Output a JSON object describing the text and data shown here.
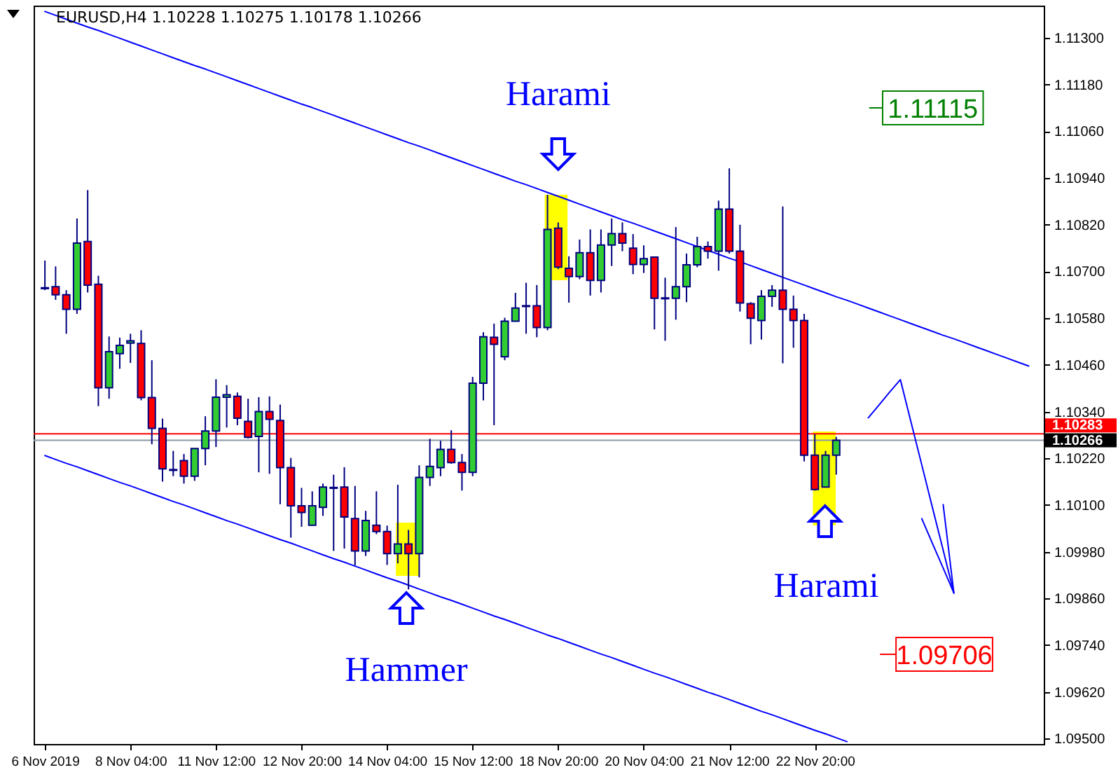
{
  "chart_data": {
    "type": "candlestick",
    "title": "EURUSD,H4  1.10228 1.10275 1.10178 1.10266",
    "categories": [
      "6 Nov 2019",
      null,
      null,
      null,
      null,
      null,
      null,
      null,
      "8 Nov 04:00",
      null,
      null,
      null,
      null,
      null,
      null,
      null,
      "11 Nov 12:00",
      null,
      null,
      null,
      null,
      null,
      null,
      null,
      "12 Nov 20:00",
      null,
      null,
      null,
      null,
      null,
      null,
      null,
      "14 Nov 04:00",
      null,
      null,
      null,
      null,
      null,
      null,
      null,
      "15 Nov 12:00",
      null,
      null,
      null,
      null,
      null,
      null,
      null,
      "18 Nov 20:00",
      null,
      null,
      null,
      null,
      null,
      null,
      null,
      "20 Nov 04:00",
      null,
      null,
      null,
      null,
      null,
      null,
      null,
      "21 Nov 12:00",
      null,
      null,
      null,
      null,
      null,
      null,
      null,
      "22 Nov 20:00",
      null,
      null,
      null,
      null,
      null,
      null,
      null,
      null,
      null,
      null,
      null,
      null,
      null,
      null,
      null,
      null,
      null,
      null,
      null,
      null
    ],
    "ohlc": [
      [
        1.10658,
        1.10728,
        1.10652,
        1.10656
      ],
      [
        1.10661,
        1.10713,
        1.10627,
        1.1064
      ],
      [
        1.1064,
        1.10652,
        1.1054,
        1.10603
      ],
      [
        1.10603,
        1.10836,
        1.10591,
        1.10773
      ],
      [
        1.10777,
        1.10909,
        1.10646,
        1.10665
      ],
      [
        1.10667,
        1.10689,
        1.10354,
        1.10401
      ],
      [
        1.10401,
        1.10533,
        1.10373,
        1.10494
      ],
      [
        1.10489,
        1.1053,
        1.1045,
        1.1051
      ],
      [
        1.10516,
        1.1054,
        1.10465,
        1.10522
      ],
      [
        1.10515,
        1.10549,
        1.10369,
        1.10376
      ],
      [
        1.10376,
        1.10472,
        1.10256,
        1.10297
      ],
      [
        1.10297,
        1.10322,
        1.1016,
        1.10193
      ],
      [
        1.10191,
        1.10239,
        1.10174,
        1.10189
      ],
      [
        1.10214,
        1.10231,
        1.10155,
        1.10174
      ],
      [
        1.10174,
        1.10245,
        1.10162,
        1.10245
      ],
      [
        1.10245,
        1.10328,
        1.10202,
        1.1029
      ],
      [
        1.1029,
        1.10423,
        1.10249,
        1.10377
      ],
      [
        1.10377,
        1.10408,
        1.10299,
        1.10383
      ],
      [
        1.10379,
        1.10389,
        1.10305,
        1.10323
      ],
      [
        1.10315,
        1.10373,
        1.10271,
        1.10274
      ],
      [
        1.10276,
        1.10377,
        1.10184,
        1.1034
      ],
      [
        1.1034,
        1.10379,
        1.1018,
        1.1032
      ],
      [
        1.10317,
        1.10358,
        1.10102,
        1.10196
      ],
      [
        1.10196,
        1.10221,
        1.10016,
        1.10098
      ],
      [
        1.10098,
        1.10144,
        1.10044,
        1.10081
      ],
      [
        1.10048,
        1.10135,
        1.10048,
        1.10098
      ],
      [
        1.10094,
        1.10155,
        1.10072,
        1.10146
      ],
      [
        1.10145,
        1.10178,
        1.09982,
        1.10143
      ],
      [
        1.10146,
        1.10197,
        1.09988,
        1.10069
      ],
      [
        1.10065,
        1.10149,
        1.09945,
        1.09982
      ],
      [
        1.09982,
        1.10085,
        1.09969,
        1.1006
      ],
      [
        1.10048,
        1.10135,
        1.10025,
        1.10032
      ],
      [
        1.10032,
        1.10047,
        1.09946,
        1.09975
      ],
      [
        1.09975,
        1.10152,
        1.0995,
        1.1
      ],
      [
        1.1,
        1.10036,
        1.09883,
        1.09975
      ],
      [
        1.09975,
        1.10202,
        1.09914,
        1.10171
      ],
      [
        1.10171,
        1.1027,
        1.10149,
        1.10199
      ],
      [
        1.10196,
        1.10265,
        1.10174,
        1.10243
      ],
      [
        1.10243,
        1.10292,
        1.10206,
        1.10209
      ],
      [
        1.10209,
        1.10231,
        1.10137,
        1.10184
      ],
      [
        1.10184,
        1.10429,
        1.10174,
        1.10413
      ],
      [
        1.10413,
        1.10544,
        1.10369,
        1.10532
      ],
      [
        1.10531,
        1.10566,
        1.10305,
        1.10513
      ],
      [
        1.10481,
        1.10581,
        1.10472,
        1.10572
      ],
      [
        1.10572,
        1.10645,
        1.10572,
        1.10606
      ],
      [
        1.1061,
        1.10671,
        1.1054,
        1.10612
      ],
      [
        1.10612,
        1.10665,
        1.10531,
        1.10556
      ],
      [
        1.10556,
        1.10897,
        1.10549,
        1.10808
      ],
      [
        1.10811,
        1.10826,
        1.10706,
        1.10711
      ],
      [
        1.10708,
        1.10739,
        1.1062,
        1.10687
      ],
      [
        1.10687,
        1.10782,
        1.1068,
        1.10748
      ],
      [
        1.10748,
        1.10808,
        1.10638,
        1.10677
      ],
      [
        1.10677,
        1.10808,
        1.10646,
        1.10768
      ],
      [
        1.10768,
        1.10836,
        1.10714,
        1.10797
      ],
      [
        1.10797,
        1.10826,
        1.10752,
        1.10773
      ],
      [
        1.1076,
        1.10796,
        1.10693,
        1.10718
      ],
      [
        1.10718,
        1.10767,
        1.10696,
        1.10733
      ],
      [
        1.10737,
        1.10738,
        1.10551,
        1.10631
      ],
      [
        1.10632,
        1.10684,
        1.10522,
        1.1063
      ],
      [
        1.10631,
        1.10814,
        1.10576,
        1.10661
      ],
      [
        1.10661,
        1.10746,
        1.10621,
        1.10717
      ],
      [
        1.10717,
        1.10789,
        1.10711,
        1.10764
      ],
      [
        1.10764,
        1.10777,
        1.10733,
        1.10752
      ],
      [
        1.10752,
        1.10882,
        1.10702,
        1.1086
      ],
      [
        1.1086,
        1.10965,
        1.10746,
        1.10752
      ],
      [
        1.10752,
        1.1082,
        1.10597,
        1.10619
      ],
      [
        1.10617,
        1.10621,
        1.10513,
        1.1058
      ],
      [
        1.10574,
        1.10652,
        1.10525,
        1.10636
      ],
      [
        1.10636,
        1.10665,
        1.10609,
        1.10652
      ],
      [
        1.10652,
        1.10867,
        1.10464,
        1.10603
      ],
      [
        1.10603,
        1.10638,
        1.10504,
        1.10574
      ],
      [
        1.10574,
        1.10591,
        1.10212,
        1.10228
      ],
      [
        1.10228,
        1.10282,
        1.10137,
        1.1014
      ],
      [
        1.10146,
        1.10239,
        1.10146,
        1.10228
      ],
      [
        1.10228,
        1.10275,
        1.10178,
        1.10266
      ],
      null,
      null,
      null,
      null,
      null,
      null,
      null,
      null,
      null,
      null,
      null,
      null,
      null,
      null,
      null,
      null,
      null,
      null
    ],
    "colors": [
      "#000080",
      "#ff0000",
      "#ff0000",
      "#32cd32",
      "#ff0000",
      "#ff0000",
      "#32cd32",
      "#32cd32",
      "#32cd32",
      "#ff0000",
      "#ff0000",
      "#ff0000",
      "#000080",
      "#ff0000",
      "#32cd32",
      "#32cd32",
      "#32cd32",
      "#32cd32",
      "#ff0000",
      "#ff0000",
      "#32cd32",
      "#ff0000",
      "#ff0000",
      "#ff0000",
      "#ff0000",
      "#32cd32",
      "#32cd32",
      "#000080",
      "#ff0000",
      "#ff0000",
      "#32cd32",
      "#ff0000",
      "#ff0000",
      "#32cd32",
      "#ff0000",
      "#32cd32",
      "#32cd32",
      "#32cd32",
      "#ff0000",
      "#ff0000",
      "#32cd32",
      "#32cd32",
      "#ff0000",
      "#32cd32",
      "#32cd32",
      "#000080",
      "#ff0000",
      "#32cd32",
      "#ff0000",
      "#ff0000",
      "#32cd32",
      "#ff0000",
      "#32cd32",
      "#32cd32",
      "#ff0000",
      "#ff0000",
      "#32cd32",
      "#ff0000",
      "#000080",
      "#32cd32",
      "#32cd32",
      "#32cd32",
      "#ff0000",
      "#32cd32",
      "#ff0000",
      "#ff0000",
      "#ff0000",
      "#32cd32",
      "#32cd32",
      "#ff0000",
      "#ff0000",
      "#ff0000",
      "#ff0000",
      "#32cd32",
      "#32cd32",
      null,
      null,
      null,
      null,
      null,
      null,
      null,
      null,
      null,
      null,
      null,
      null,
      null,
      null,
      null,
      null,
      null,
      null
    ],
    "series": [
      {
        "type": "line",
        "color": "#0000ff",
        "values": [
          1.11368,
          1.11358,
          1.11348,
          1.11338,
          1.11328,
          1.11319,
          1.11309,
          1.11299,
          1.11289,
          1.11279,
          1.11269,
          1.11259,
          1.11249,
          1.11239,
          1.11229,
          1.1122,
          1.1121,
          1.112,
          1.1119,
          1.1118,
          1.1117,
          1.1116,
          1.1115,
          1.1114,
          1.1113,
          1.11121,
          1.11111,
          1.11101,
          1.11091,
          1.11081,
          1.11071,
          1.11061,
          1.11051,
          1.11041,
          1.11031,
          1.11022,
          1.11012,
          1.11002,
          1.10992,
          1.10982,
          1.10972,
          1.10962,
          1.10952,
          1.10942,
          1.10932,
          1.10923,
          1.10913,
          1.10903,
          1.10893,
          1.10883,
          1.10873,
          1.10863,
          1.10853,
          1.10843,
          1.10833,
          1.10824,
          1.10814,
          1.10804,
          1.10794,
          1.10784,
          1.10774,
          1.10764,
          1.10754,
          1.10744,
          1.10734,
          1.10725,
          1.10715,
          1.10705,
          1.10695,
          1.10685,
          1.10675,
          1.10665,
          1.10655,
          1.10645,
          1.10635,
          1.10626,
          1.10616,
          1.10606,
          1.10596,
          1.10586,
          1.10576,
          1.10566,
          1.10556,
          1.10546,
          1.10536,
          1.10527,
          1.10517,
          1.10507,
          1.10497,
          1.10487,
          1.10477,
          1.10467,
          1.10457
        ]
      },
      {
        "type": "line",
        "color": "#0000ff",
        "values": [
          1.10227,
          1.10217,
          1.10207,
          1.10198,
          1.10188,
          1.10178,
          1.10168,
          1.10158,
          1.10149,
          1.10139,
          1.10129,
          1.10119,
          1.10109,
          1.101,
          1.1009,
          1.1008,
          1.1007,
          1.1006,
          1.10051,
          1.10041,
          1.10031,
          1.10021,
          1.10011,
          1.10002,
          1.09992,
          1.09982,
          1.09972,
          1.09962,
          1.09953,
          1.09943,
          1.09933,
          1.09923,
          1.09913,
          1.09904,
          1.09894,
          1.09884,
          1.09874,
          1.09864,
          1.09855,
          1.09845,
          1.09835,
          1.09825,
          1.09815,
          1.09806,
          1.09796,
          1.09786,
          1.09776,
          1.09766,
          1.09757,
          1.09747,
          1.09737,
          1.09727,
          1.09717,
          1.09708,
          1.09698,
          1.09688,
          1.09678,
          1.09668,
          1.09659,
          1.09649,
          1.09639,
          1.09629,
          1.09619,
          1.0961,
          1.096,
          1.0959,
          1.0958,
          1.0957,
          1.09561,
          1.09551,
          1.09541,
          1.09531,
          1.09521,
          1.09512,
          1.09502,
          1.09492,
          null,
          null,
          null,
          null,
          null,
          null,
          null,
          null,
          null,
          null,
          null,
          null,
          null,
          null,
          null,
          null,
          null
        ]
      },
      {
        "type": "line",
        "color": "#0000ff",
        "values": [
          null,
          null,
          null,
          null,
          null,
          null,
          null,
          null,
          null,
          null,
          null,
          null,
          null,
          null,
          null,
          null,
          null,
          null,
          null,
          null,
          null,
          null,
          null,
          null,
          null,
          null,
          null,
          null,
          null,
          null,
          null,
          null,
          null,
          null,
          null,
          null,
          null,
          null,
          null,
          null,
          null,
          null,
          null,
          null,
          null,
          null,
          null,
          null,
          null,
          null,
          null,
          null,
          null,
          null,
          null,
          null,
          null,
          null,
          null,
          null,
          null,
          null,
          null,
          null,
          null,
          null,
          null,
          null,
          null,
          null,
          null,
          null,
          null,
          null,
          null,
          null,
          null,
          1.10324,
          1.10357,
          1.1039,
          1.10422,
          1.10312,
          1.10203,
          1.10093,
          1.09984,
          1.09874,
          null,
          null,
          null,
          null,
          null,
          null,
          null
        ]
      },
      {
        "type": "line",
        "color": "#0000ff",
        "values": [
          null,
          null,
          null,
          null,
          null,
          null,
          null,
          null,
          null,
          null,
          null,
          null,
          null,
          null,
          null,
          null,
          null,
          null,
          null,
          null,
          null,
          null,
          null,
          null,
          null,
          null,
          null,
          null,
          null,
          null,
          null,
          null,
          null,
          null,
          null,
          null,
          null,
          null,
          null,
          null,
          null,
          null,
          null,
          null,
          null,
          null,
          null,
          null,
          null,
          null,
          null,
          null,
          null,
          null,
          null,
          null,
          null,
          null,
          null,
          null,
          null,
          null,
          null,
          null,
          null,
          null,
          null,
          null,
          null,
          null,
          null,
          null,
          null,
          null,
          null,
          null,
          null,
          null,
          null,
          null,
          null,
          null,
          1.10065,
          1.10001,
          1.09938,
          1.09874,
          null,
          null,
          null,
          null,
          null,
          null,
          null
        ]
      },
      {
        "type": "line",
        "color": "#0000ff",
        "values": [
          null,
          null,
          null,
          null,
          null,
          null,
          null,
          null,
          null,
          null,
          null,
          null,
          null,
          null,
          null,
          null,
          null,
          null,
          null,
          null,
          null,
          null,
          null,
          null,
          null,
          null,
          null,
          null,
          null,
          null,
          null,
          null,
          null,
          null,
          null,
          null,
          null,
          null,
          null,
          null,
          null,
          null,
          null,
          null,
          null,
          null,
          null,
          null,
          null,
          null,
          null,
          null,
          null,
          null,
          null,
          null,
          null,
          null,
          null,
          null,
          null,
          null,
          null,
          null,
          null,
          null,
          null,
          null,
          null,
          null,
          null,
          null,
          null,
          null,
          null,
          null,
          null,
          null,
          null,
          null,
          null,
          null,
          null,
          null,
          1.10101,
          1.09874,
          null,
          null,
          null,
          null,
          null,
          null,
          null
        ]
      }
    ],
    "ylim": [
      1.09486,
      1.11383
    ],
    "yticks": [
      {
        "value": 1.095,
        "label": "1.09500"
      },
      {
        "value": 1.0962,
        "label": "1.09620"
      },
      {
        "value": 1.0974,
        "label": "1.09740"
      },
      {
        "value": 1.0986,
        "label": "1.09860"
      },
      {
        "value": 1.0998,
        "label": "1.09980"
      },
      {
        "value": 1.101,
        "label": "1.10100"
      },
      {
        "value": 1.1022,
        "label": "1.10220"
      },
      {
        "value": 1.1034,
        "label": "1.10340"
      },
      {
        "value": 1.1046,
        "label": "1.10460"
      },
      {
        "value": 1.1058,
        "label": "1.10580"
      },
      {
        "value": 1.107,
        "label": "1.10700"
      },
      {
        "value": 1.1082,
        "label": "1.10820"
      },
      {
        "value": 1.1094,
        "label": "1.10940"
      },
      {
        "value": 1.1106,
        "label": "1.11060"
      },
      {
        "value": 1.1118,
        "label": "1.11180"
      },
      {
        "value": 1.113,
        "label": "1.11300"
      }
    ],
    "ref_lines": [
      {
        "axis": "y",
        "value": 1.10283,
        "label": "1.10283",
        "color": "#ff0000"
      },
      {
        "axis": "y",
        "value": 1.10266,
        "label": "1.10266",
        "color": "#8c99a6"
      }
    ],
    "annotations": [
      "Harami",
      "Hammer",
      "Harami",
      "1.11115",
      "1.09706"
    ]
  }
}
